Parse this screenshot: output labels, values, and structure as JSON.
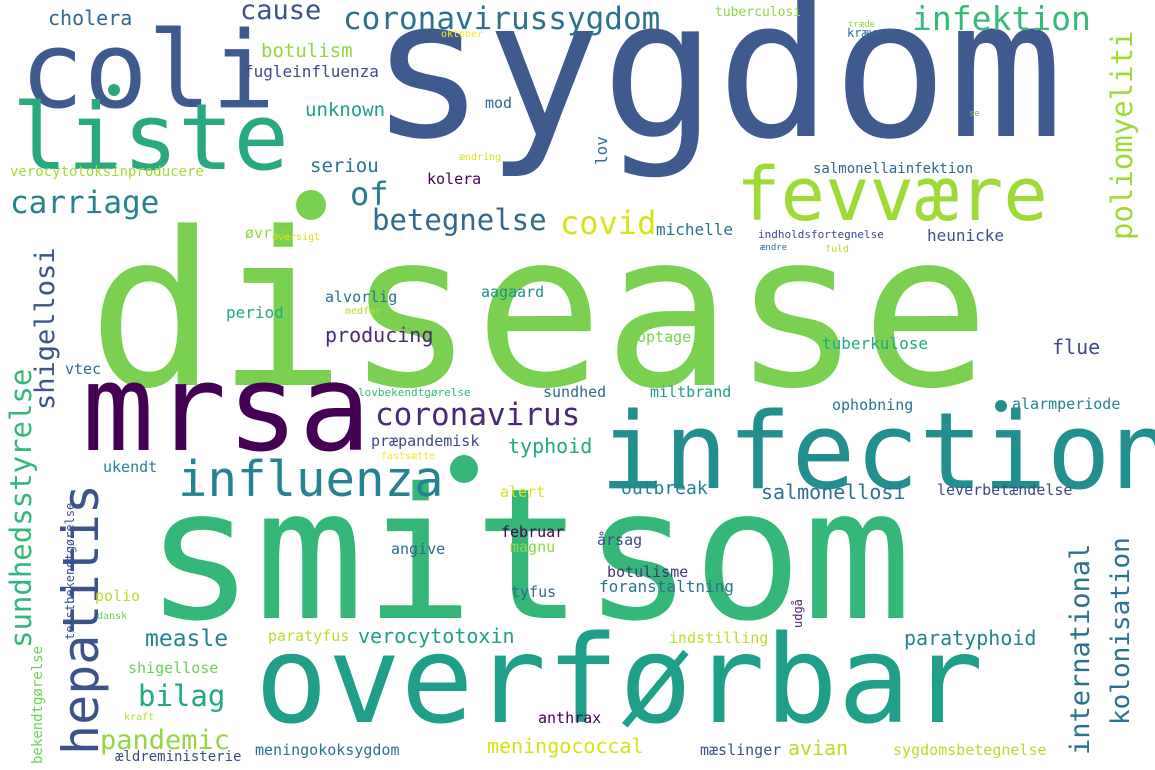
{
  "palette": {
    "dark_purple": "#440154",
    "purple": "#482878",
    "indigo": "#3e4989",
    "blue": "#31688e",
    "steel": "#26828e",
    "teal": "#1f9e89",
    "green": "#35b779",
    "light_green": "#6ece58",
    "lime": "#b5de2b",
    "yellow": "#fde725"
  },
  "words": [
    {
      "text": "disease",
      "color": "#7ad151"
    },
    {
      "text": "sygdom",
      "color": "#3e5a8e"
    },
    {
      "text": "smitsom",
      "color": "#35b779"
    },
    {
      "text": "overførbar",
      "color": "#1f9e89"
    },
    {
      "text": "coli",
      "color": "#3e5a8e"
    },
    {
      "text": "liste",
      "color": "#2aa882"
    },
    {
      "text": "mrsa",
      "color": "#440154"
    },
    {
      "text": "infection",
      "color": "#218f8d"
    },
    {
      "text": "fevvære",
      "color": "#a0da39"
    },
    {
      "text": "influenza",
      "color": "#26828e"
    },
    {
      "text": "coronavirussygdom",
      "color": "#2c728e"
    },
    {
      "text": "infektion",
      "color": "#38b977"
    },
    {
      "text": "hepatitis",
      "color": "#3b528b"
    },
    {
      "text": "coronavirus",
      "color": "#482878"
    },
    {
      "text": "betegnelse",
      "color": "#31688e"
    },
    {
      "text": "carriage",
      "color": "#26828e"
    },
    {
      "text": "of",
      "color": "#287c8e"
    },
    {
      "text": "covid",
      "color": "#d8e219"
    },
    {
      "text": "cause",
      "color": "#3b528b"
    },
    {
      "text": "cholera",
      "color": "#31688e"
    },
    {
      "text": "botulism",
      "color": "#90d743"
    },
    {
      "text": "fugleinfluenza",
      "color": "#3e4989"
    },
    {
      "text": "unknown",
      "color": "#1f9e89"
    },
    {
      "text": "seriou",
      "color": "#2c728e"
    },
    {
      "text": "verocytotoksinproducere",
      "color": "#a0da39"
    },
    {
      "text": "mod",
      "color": "#31688e"
    },
    {
      "text": "salmonellainfektion",
      "color": "#31688e"
    },
    {
      "text": "kolera",
      "color": "#440154"
    },
    {
      "text": "michelle",
      "color": "#2c728e"
    },
    {
      "text": "heunicke",
      "color": "#3b528b"
    },
    {
      "text": "øvrig",
      "color": "#90d743"
    },
    {
      "text": "indholdsfortegnelse",
      "color": "#3e4989"
    },
    {
      "text": "alvorlig",
      "color": "#2c728e"
    },
    {
      "text": "aagaard",
      "color": "#218f8d"
    },
    {
      "text": "period",
      "color": "#22a884"
    },
    {
      "text": "producing",
      "color": "#482878"
    },
    {
      "text": "optage",
      "color": "#7ad151"
    },
    {
      "text": "tuberkulose",
      "color": "#22a884"
    },
    {
      "text": "flue",
      "color": "#3e4989"
    },
    {
      "text": "vtec",
      "color": "#31688e"
    },
    {
      "text": "sundhed",
      "color": "#31688e"
    },
    {
      "text": "miltbrand",
      "color": "#1f9e89"
    },
    {
      "text": "ophobning",
      "color": "#2c728e"
    },
    {
      "text": "alarmperiode",
      "color": "#26828e"
    },
    {
      "text": "præpandemisk",
      "color": "#3e4989"
    },
    {
      "text": "typhoid",
      "color": "#22a884"
    },
    {
      "text": "ukendt",
      "color": "#26828e"
    },
    {
      "text": "outbreak",
      "color": "#26828e"
    },
    {
      "text": "salmonellosi",
      "color": "#2c728e"
    },
    {
      "text": "alert",
      "color": "#d8e219"
    },
    {
      "text": "leverbetændelse",
      "color": "#3e4989"
    },
    {
      "text": "februar",
      "color": "#440154"
    },
    {
      "text": "årsag",
      "color": "#3e4989"
    },
    {
      "text": "magnu",
      "color": "#90d743"
    },
    {
      "text": "angive",
      "color": "#31688e"
    },
    {
      "text": "botulisme",
      "color": "#46337e"
    },
    {
      "text": "foranstaltning",
      "color": "#2c728e"
    },
    {
      "text": "tyfus",
      "color": "#31688e"
    },
    {
      "text": "polio",
      "color": "#b5de2b"
    },
    {
      "text": "measle",
      "color": "#26828e"
    },
    {
      "text": "verocytotoxin",
      "color": "#1f9e89"
    },
    {
      "text": "paratyphoid",
      "color": "#26828e"
    },
    {
      "text": "bilag",
      "color": "#22a884"
    },
    {
      "text": "pandemic",
      "color": "#90d743"
    },
    {
      "text": "paratyfus",
      "color": "#b5de2b"
    },
    {
      "text": "indstilling",
      "color": "#bddf26"
    },
    {
      "text": "shigellose",
      "color": "#6ece58"
    },
    {
      "text": "anthrax",
      "color": "#440154"
    },
    {
      "text": "meningococcal",
      "color": "#d8e219"
    },
    {
      "text": "avian",
      "color": "#b5de2b"
    },
    {
      "text": "meningokoksygdom",
      "color": "#2c728e"
    },
    {
      "text": "mæslinger",
      "color": "#3b528b"
    },
    {
      "text": "sygdomsbetegnelse",
      "color": "#b5de2b"
    },
    {
      "text": "ældreministerie",
      "color": "#3e4989"
    },
    {
      "text": "dansk",
      "color": "#6ece58"
    },
    {
      "text": "kraft",
      "color": "#b5de2b"
    },
    {
      "text": "tuberculosi",
      "color": "#90d743"
    },
    {
      "text": "oktober",
      "color": "#fde725"
    },
    {
      "text": "kræve",
      "color": "#2c728e"
    },
    {
      "text": "træde",
      "color": "#90d743"
    },
    {
      "text": "ændring",
      "color": "#d8e219"
    },
    {
      "text": "oversigt",
      "color": "#d8e219"
    },
    {
      "text": "ændre",
      "color": "#2c728e"
    },
    {
      "text": "fuld",
      "color": "#b5de2b"
    },
    {
      "text": "medfør",
      "color": "#b5de2b"
    },
    {
      "text": "lovbekendtgørelse",
      "color": "#35b779"
    },
    {
      "text": "fastsætte",
      "color": "#fde725"
    },
    {
      "text": "se",
      "color": "#6ece58"
    },
    {
      "text": "shigellosi",
      "color": "#3b528b"
    },
    {
      "text": "sundhedsstyrelse",
      "color": "#35b779"
    },
    {
      "text": "poliomyeliti",
      "color": "#a0da39"
    },
    {
      "text": "international",
      "color": "#2c728e"
    },
    {
      "text": "kolonisation",
      "color": "#2c728e"
    },
    {
      "text": "lov",
      "color": "#2c728e"
    },
    {
      "text": "tekstbekendtgørelse",
      "color": "#3b528b"
    },
    {
      "text": "bekendtgørelse",
      "color": "#6ece58"
    },
    {
      "text": "udgå",
      "color": "#482878"
    }
  ]
}
